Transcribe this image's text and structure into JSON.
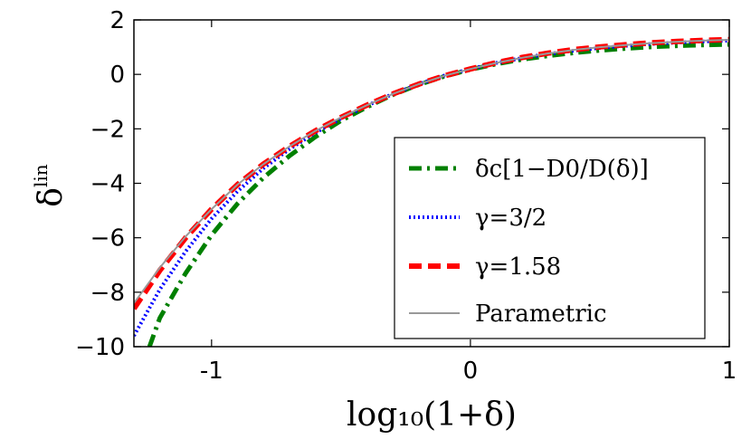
{
  "chart_data": {
    "type": "line",
    "title": "",
    "xlabel": "log₁₀(1+δ)",
    "ylabel": "δ",
    "ylabel_superscript": "lin",
    "xlim": [
      -1.3,
      1.0
    ],
    "ylim": [
      -10,
      2
    ],
    "xticks": [
      {
        "value": -1,
        "label": "-1"
      },
      {
        "value": 0,
        "label": "0"
      },
      {
        "value": 1,
        "label": "1"
      }
    ],
    "yticks": [
      {
        "value": 2,
        "label": "2"
      },
      {
        "value": 0,
        "label": "0"
      },
      {
        "value": -2,
        "label": "−2"
      },
      {
        "value": -4,
        "label": "−4"
      },
      {
        "value": -6,
        "label": "−6"
      },
      {
        "value": -8,
        "label": "−8"
      },
      {
        "value": -10,
        "label": "−10"
      }
    ],
    "legend_position": "lower-right",
    "series": [
      {
        "name": "δc[1−D0/D(δ)]",
        "color": "#008000",
        "dash": "dashdot",
        "x": [
          -1.24,
          -1.2,
          -1.1,
          -1.0,
          -0.9,
          -0.8,
          -0.7,
          -0.6,
          -0.5,
          -0.4,
          -0.3,
          -0.2,
          -0.1,
          0.0,
          0.1,
          0.2,
          0.3,
          0.4,
          0.5,
          0.6,
          0.7,
          0.8,
          0.9,
          1.0
        ],
        "y": [
          -10.0,
          -8.95,
          -7.3,
          -5.9,
          -4.75,
          -3.8,
          -3.0,
          -2.3,
          -1.7,
          -1.2,
          -0.75,
          -0.38,
          -0.07,
          0.18,
          0.38,
          0.55,
          0.68,
          0.79,
          0.88,
          0.95,
          1.01,
          1.05,
          1.08,
          1.1
        ]
      },
      {
        "name": "γ=3/2",
        "color": "#0000ff",
        "dash": "dotted",
        "x": [
          -1.3,
          -1.2,
          -1.1,
          -1.0,
          -0.9,
          -0.8,
          -0.7,
          -0.6,
          -0.5,
          -0.4,
          -0.3,
          -0.2,
          -0.1,
          0.0,
          0.1,
          0.2,
          0.3,
          0.4,
          0.5,
          0.6,
          0.7,
          0.8,
          0.9,
          1.0
        ],
        "y": [
          -9.6,
          -7.9,
          -6.5,
          -5.3,
          -4.3,
          -3.45,
          -2.75,
          -2.15,
          -1.62,
          -1.15,
          -0.72,
          -0.36,
          -0.04,
          0.2,
          0.42,
          0.6,
          0.75,
          0.87,
          0.97,
          1.05,
          1.12,
          1.17,
          1.21,
          1.24
        ]
      },
      {
        "name": "γ=1.58",
        "color": "#ff0000",
        "dash": "dashed",
        "x": [
          -1.3,
          -1.2,
          -1.1,
          -1.0,
          -0.9,
          -0.8,
          -0.7,
          -0.6,
          -0.5,
          -0.4,
          -0.3,
          -0.2,
          -0.1,
          0.0,
          0.1,
          0.2,
          0.3,
          0.4,
          0.5,
          0.6,
          0.7,
          0.8,
          0.9,
          1.0
        ],
        "y": [
          -8.6,
          -7.2,
          -6.0,
          -4.95,
          -4.05,
          -3.3,
          -2.65,
          -2.08,
          -1.58,
          -1.13,
          -0.72,
          -0.36,
          -0.05,
          0.2,
          0.43,
          0.62,
          0.78,
          0.91,
          1.01,
          1.09,
          1.16,
          1.21,
          1.25,
          1.28
        ]
      },
      {
        "name": "Parametric",
        "color": "#999999",
        "dash": "solid",
        "x": [
          -1.3,
          -1.2,
          -1.1,
          -1.0,
          -0.9,
          -0.8,
          -0.7,
          -0.6,
          -0.5,
          -0.4,
          -0.3,
          -0.2,
          -0.1,
          0.0,
          0.1,
          0.2,
          0.3,
          0.4,
          0.5,
          0.6,
          0.7,
          0.8,
          0.9,
          1.0
        ],
        "y": [
          -8.4,
          -7.1,
          -5.95,
          -4.95,
          -4.05,
          -3.3,
          -2.65,
          -2.08,
          -1.58,
          -1.13,
          -0.72,
          -0.36,
          -0.05,
          0.2,
          0.42,
          0.61,
          0.77,
          0.9,
          1.0,
          1.08,
          1.15,
          1.2,
          1.24,
          1.27
        ]
      }
    ]
  }
}
